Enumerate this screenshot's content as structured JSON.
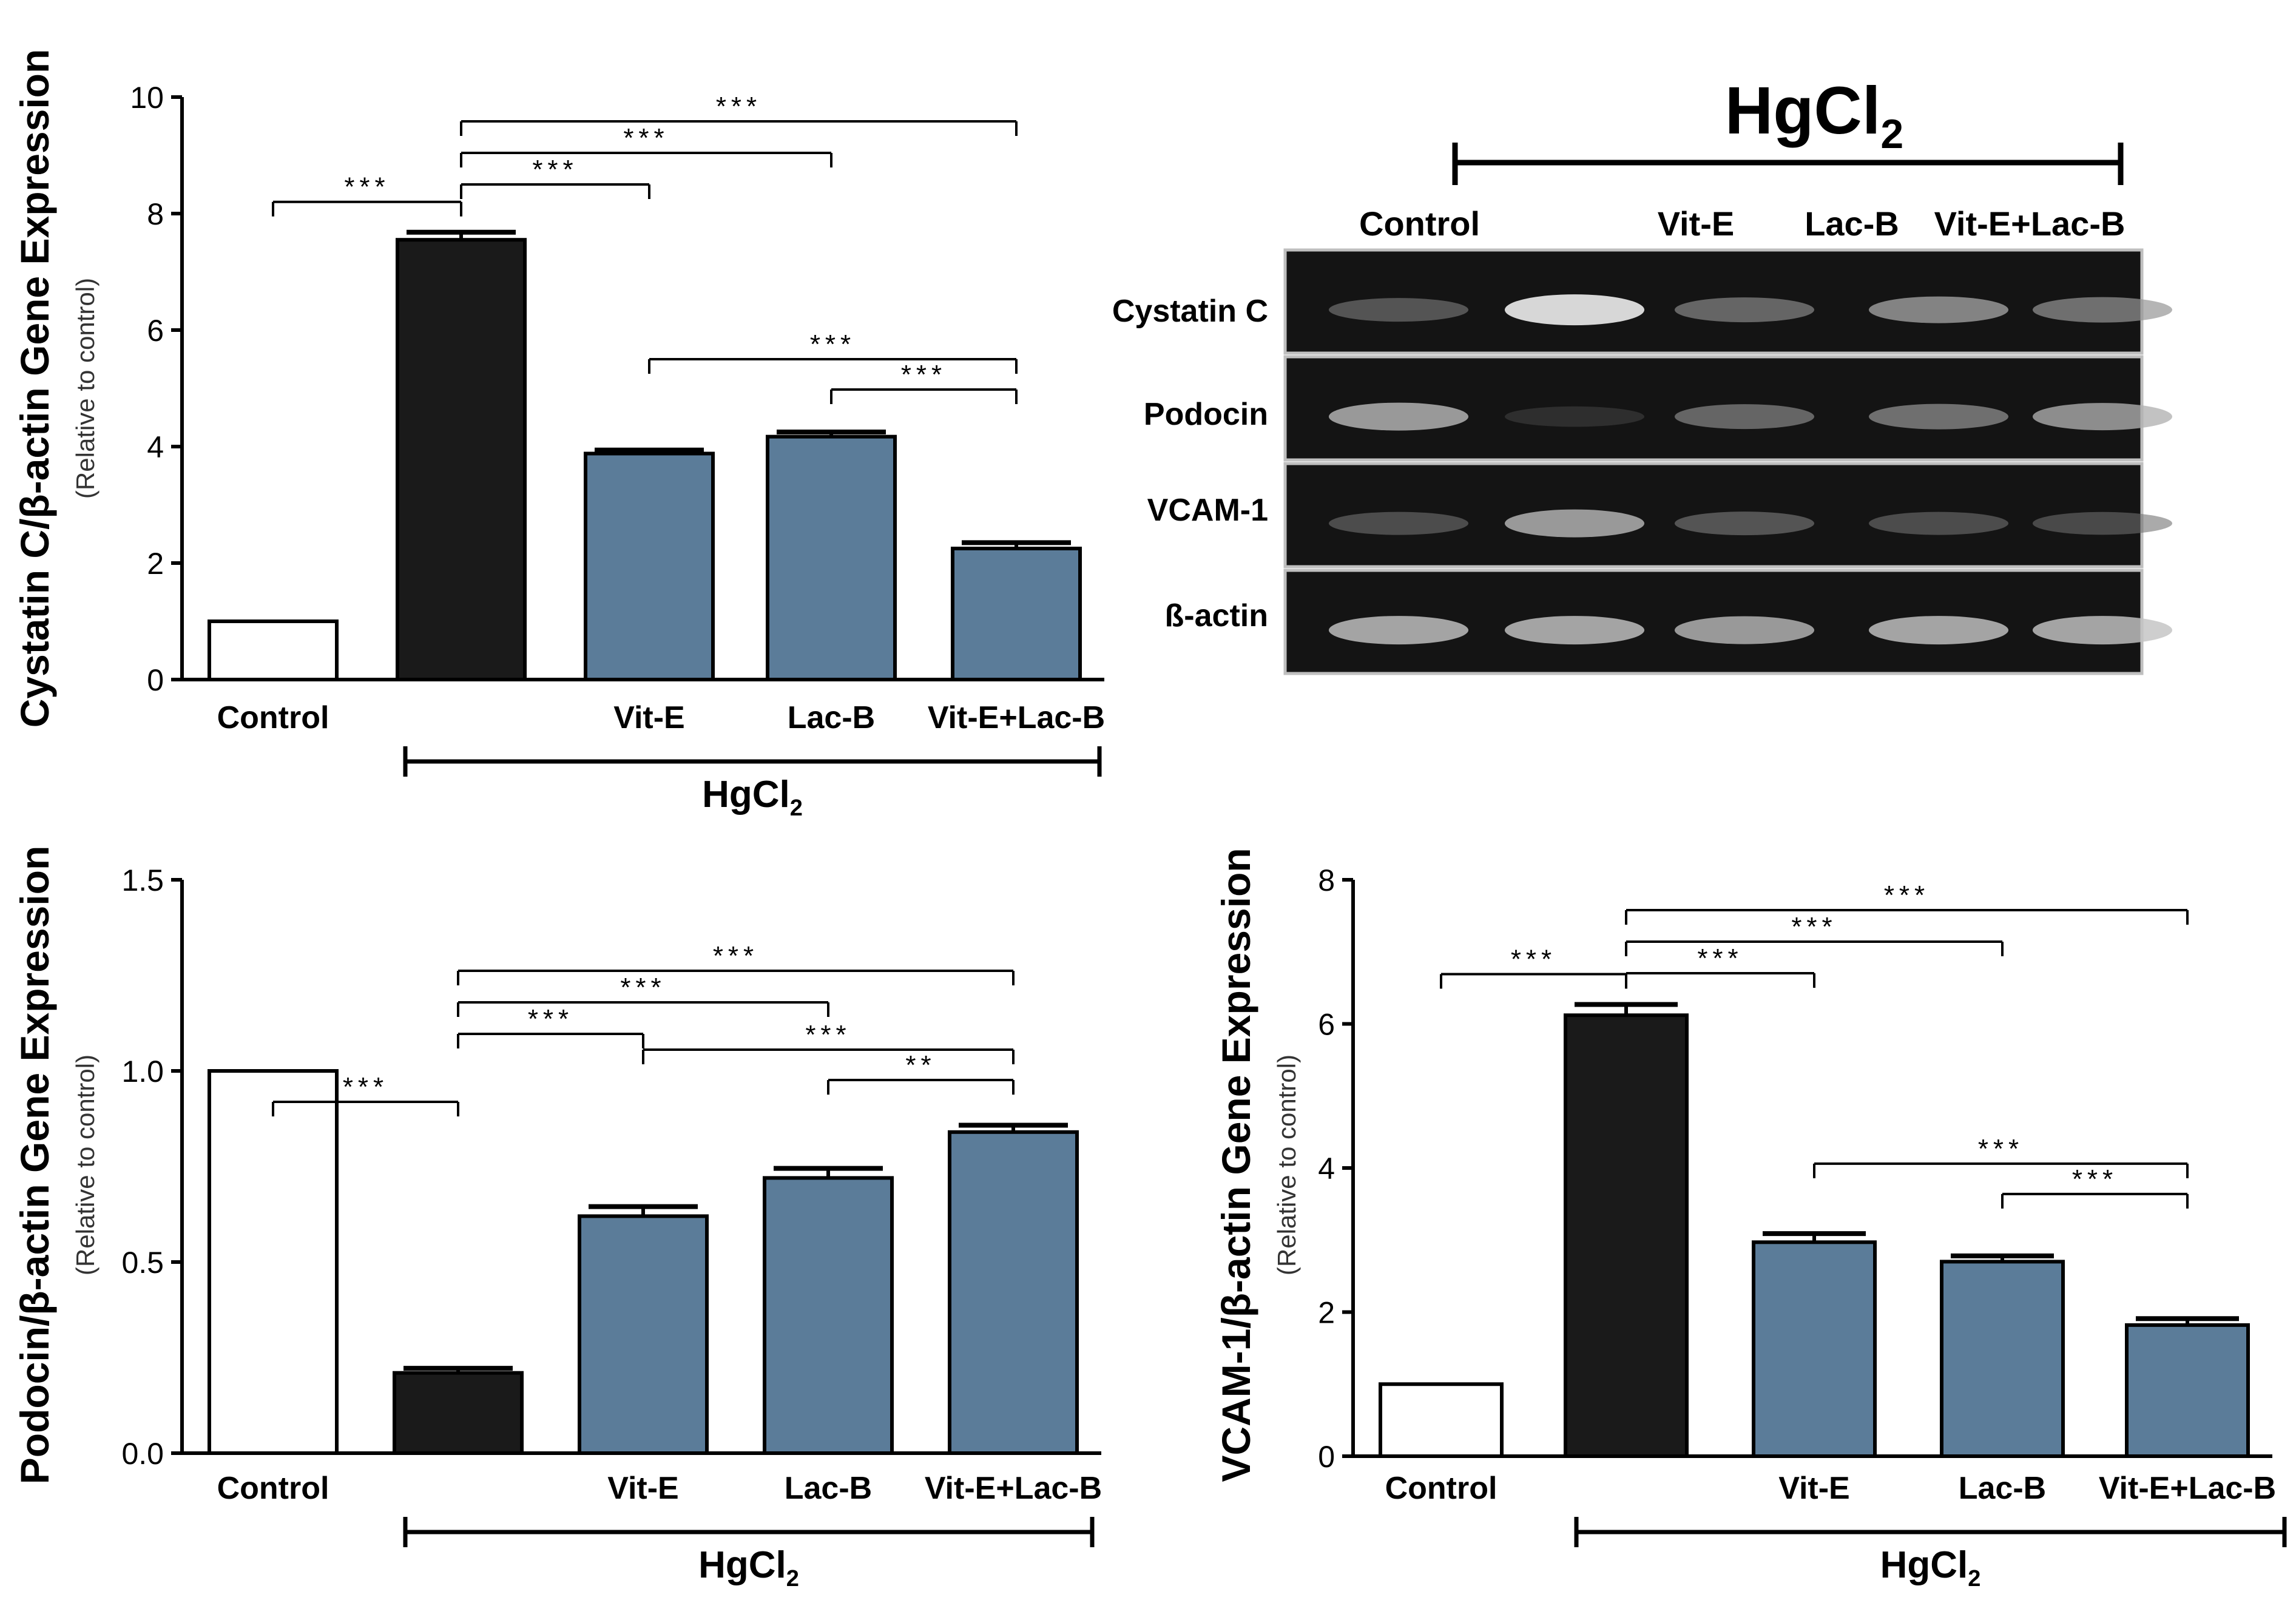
{
  "group_label": "HgCl",
  "group_subscript": "2",
  "chart_data": [
    {
      "type": "bar",
      "id": "cystatin",
      "ylabel": "Cystatin C/β-actin Gene Expression",
      "ylabel_sub": "(Relative to control)",
      "categories": [
        "Control",
        "",
        "Vit-E",
        "Lac-B",
        "Vit-E+Lac-B"
      ],
      "values": [
        1.0,
        7.55,
        3.88,
        4.17,
        2.25
      ],
      "errors": [
        0,
        0.13,
        0.06,
        0.08,
        0.1
      ],
      "bar_colors": [
        "#ffffff",
        "#1a1a1a",
        "#5b7c99",
        "#5b7c99",
        "#5b7c99"
      ],
      "ylim": [
        0,
        10
      ],
      "yticks": [
        "0",
        "2",
        "4",
        "6",
        "8",
        "10"
      ],
      "group": {
        "label": "HgCl",
        "sub": "2",
        "from": 1,
        "to": 4
      },
      "significance": [
        {
          "from": 0,
          "to": 1,
          "label": "***"
        },
        {
          "from": 1,
          "to": 2,
          "label": "***"
        },
        {
          "from": 1,
          "to": 3,
          "label": "***"
        },
        {
          "from": 1,
          "to": 4,
          "label": "***"
        },
        {
          "from": 2,
          "to": 4,
          "label": "***"
        },
        {
          "from": 3,
          "to": 4,
          "label": "***"
        }
      ]
    },
    {
      "type": "bar",
      "id": "podocin",
      "ylabel": "Podocin/β-actin Gene Expression",
      "ylabel_sub": "(Relative to control)",
      "categories": [
        "Control",
        "",
        "Vit-E",
        "Lac-B",
        "Vit-E+Lac-B"
      ],
      "values": [
        1.0,
        0.21,
        0.62,
        0.72,
        0.84
      ],
      "errors": [
        0,
        0.012,
        0.025,
        0.025,
        0.018
      ],
      "bar_colors": [
        "#ffffff",
        "#1a1a1a",
        "#5b7c99",
        "#5b7c99",
        "#5b7c99"
      ],
      "ylim": [
        0,
        1.5
      ],
      "yticks": [
        "0.0",
        "0.5",
        "1.0",
        "1.5"
      ],
      "group": {
        "label": "HgCl",
        "sub": "2",
        "from": 1,
        "to": 4
      },
      "significance": [
        {
          "from": 0,
          "to": 1,
          "label": "***"
        },
        {
          "from": 1,
          "to": 2,
          "label": "***"
        },
        {
          "from": 1,
          "to": 3,
          "label": "***"
        },
        {
          "from": 1,
          "to": 4,
          "label": "***"
        },
        {
          "from": 2,
          "to": 4,
          "label": "***"
        },
        {
          "from": 3,
          "to": 4,
          "label": "**"
        }
      ]
    },
    {
      "type": "bar",
      "id": "vcam",
      "ylabel": "VCAM-1/β-actin Gene Expression",
      "ylabel_sub": "(Relative to control)",
      "categories": [
        "Control",
        "",
        "Vit-E",
        "Lac-B",
        "Vit-E+Lac-B"
      ],
      "values": [
        1.0,
        6.12,
        2.97,
        2.7,
        1.82
      ],
      "errors": [
        0,
        0.15,
        0.12,
        0.08,
        0.09
      ],
      "bar_colors": [
        "#ffffff",
        "#1a1a1a",
        "#5b7c99",
        "#5b7c99",
        "#5b7c99"
      ],
      "ylim": [
        0,
        8
      ],
      "yticks": [
        "0",
        "2",
        "4",
        "6",
        "8"
      ],
      "group": {
        "label": "HgCl",
        "sub": "2",
        "from": 1,
        "to": 4
      },
      "significance": [
        {
          "from": 0,
          "to": 1,
          "label": "***"
        },
        {
          "from": 1,
          "to": 2,
          "label": "***"
        },
        {
          "from": 1,
          "to": 3,
          "label": "***"
        },
        {
          "from": 1,
          "to": 4,
          "label": "***"
        },
        {
          "from": 2,
          "to": 4,
          "label": "***"
        },
        {
          "from": 3,
          "to": 4,
          "label": "***"
        }
      ]
    }
  ],
  "gel": {
    "title": "HgCl",
    "title_sub": "2",
    "lanes": [
      "Control",
      "",
      "Vit-E",
      "Lac-B",
      "Vit-E+Lac-B"
    ],
    "rows": [
      {
        "label": "Cystatin C",
        "intensities": [
          0.35,
          0.95,
          0.45,
          0.6,
          0.5
        ]
      },
      {
        "label": "Podocin",
        "intensities": [
          0.7,
          0.08,
          0.45,
          0.5,
          0.65
        ]
      },
      {
        "label": "VCAM-1",
        "intensities": [
          0.3,
          0.7,
          0.35,
          0.3,
          0.28
        ]
      },
      {
        "label": "ß-actin",
        "intensities": [
          0.75,
          0.75,
          0.7,
          0.75,
          0.75
        ]
      }
    ]
  }
}
